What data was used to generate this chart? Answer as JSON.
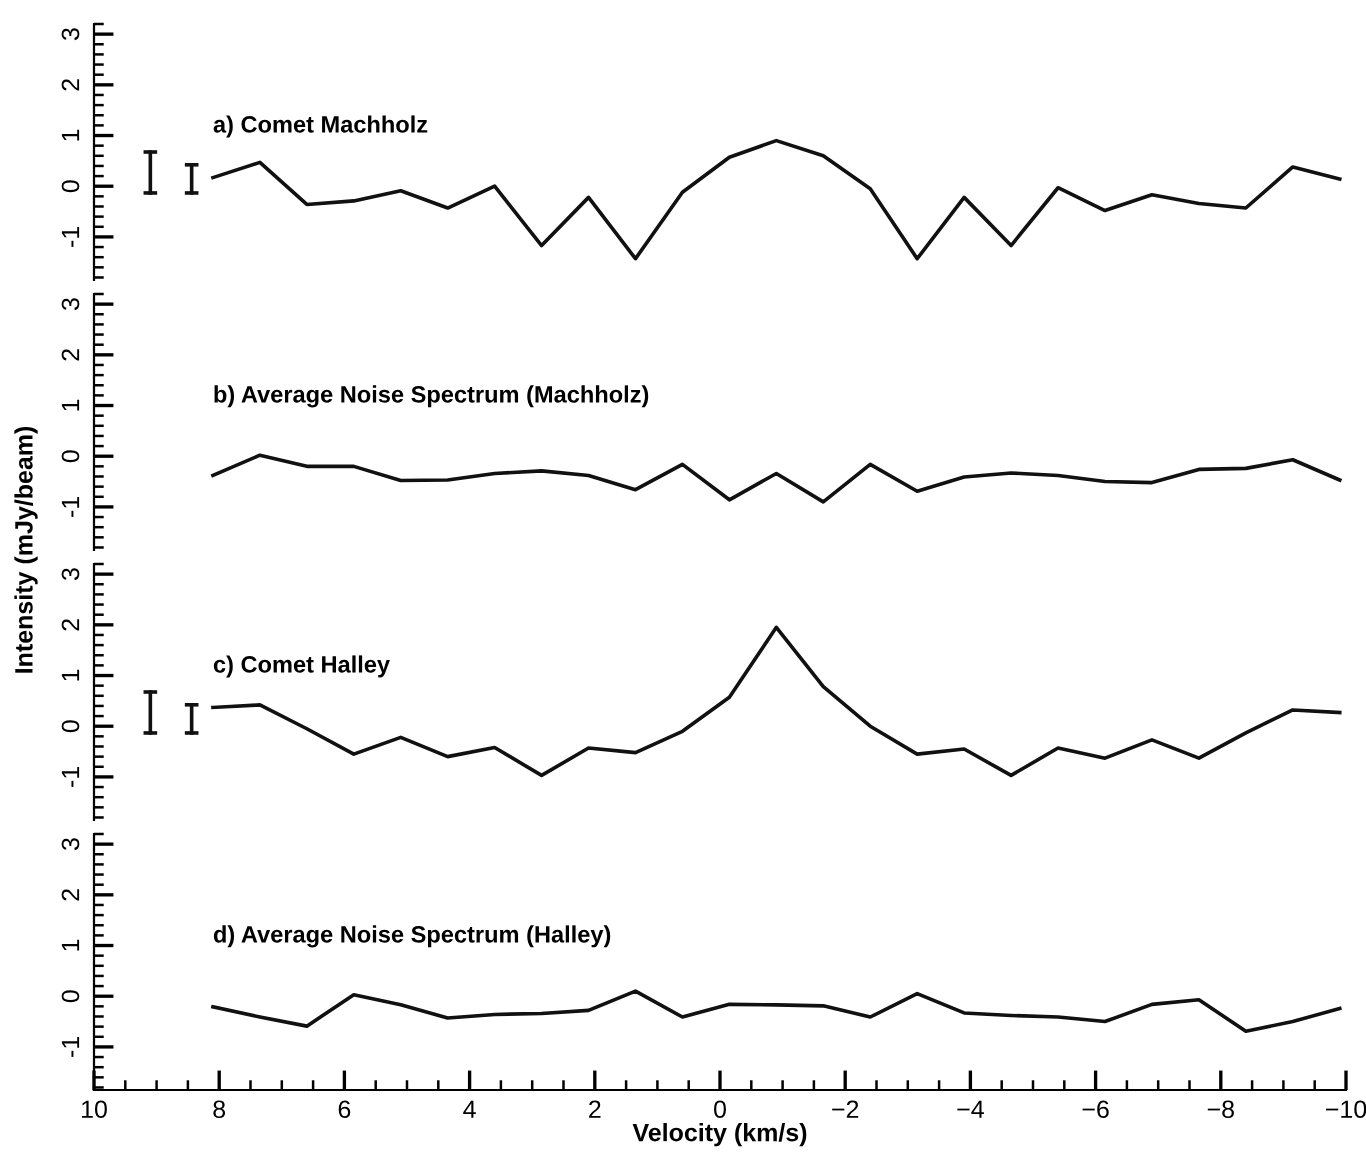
{
  "chart_data": [
    {
      "type": "line",
      "title": "a) Comet Machholz",
      "x": [
        8.1,
        7.35,
        6.6,
        5.85,
        5.1,
        4.35,
        3.6,
        2.85,
        2.1,
        1.35,
        0.6,
        -0.15,
        -0.9,
        -1.65,
        -2.4,
        -3.15,
        -3.9,
        -4.65,
        -5.4,
        -6.15,
        -6.9,
        -7.65,
        -8.4,
        -9.15,
        -9.9
      ],
      "series": [
        {
          "color": "#111111",
          "values": [
            0.17,
            0.47,
            -0.36,
            -0.29,
            -0.09,
            -0.43,
            0.0,
            -1.17,
            -0.22,
            -1.43,
            -0.12,
            0.57,
            0.9,
            0.6,
            -0.05,
            -1.43,
            -0.22,
            -1.17,
            -0.03,
            -0.48,
            -0.17,
            -0.34,
            -0.43,
            0.38,
            0.14
          ]
        }
      ],
      "xlim": [
        10,
        -10
      ],
      "ylim": [
        -1.85,
        3.2
      ],
      "yticks": [
        -1,
        0,
        1,
        2,
        3
      ],
      "tick_labels": "y",
      "line_style": "solid",
      "marker": "none",
      "grid": false
    },
    {
      "type": "line",
      "title": "b) Average Noise Spectrum (Machholz)",
      "ylabel": "Intensity (mJy/beam)",
      "x": [
        8.1,
        7.35,
        6.6,
        5.85,
        5.1,
        4.35,
        3.6,
        2.85,
        2.1,
        1.35,
        0.6,
        -0.15,
        -0.9,
        -1.65,
        -2.4,
        -3.15,
        -3.9,
        -4.65,
        -5.4,
        -6.15,
        -6.9,
        -7.65,
        -8.4,
        -9.15,
        -9.9
      ],
      "series": [
        {
          "color": "#111111",
          "values": [
            -0.38,
            0.02,
            -0.2,
            -0.2,
            -0.48,
            -0.47,
            -0.34,
            -0.29,
            -0.38,
            -0.66,
            -0.16,
            -0.86,
            -0.34,
            -0.9,
            -0.16,
            -0.69,
            -0.41,
            -0.33,
            -0.38,
            -0.5,
            -0.52,
            -0.26,
            -0.24,
            -0.07,
            -0.47
          ]
        }
      ],
      "xlim": [
        10,
        -10
      ],
      "ylim": [
        -1.85,
        3.2
      ],
      "yticks": [
        -1,
        0,
        1,
        2,
        3
      ],
      "tick_labels": "y",
      "line_style": "solid",
      "marker": "none",
      "grid": false
    },
    {
      "type": "line",
      "title": "c) Comet Halley",
      "x": [
        8.1,
        7.35,
        6.6,
        5.85,
        5.1,
        4.35,
        3.6,
        2.85,
        2.1,
        1.35,
        0.6,
        -0.15,
        -0.9,
        -1.65,
        -2.4,
        -3.15,
        -3.9,
        -4.65,
        -5.4,
        -6.15,
        -6.9,
        -7.65,
        -8.4,
        -9.15,
        -9.9
      ],
      "series": [
        {
          "color": "#111111",
          "values": [
            0.37,
            0.42,
            -0.05,
            -0.55,
            -0.22,
            -0.6,
            -0.42,
            -0.97,
            -0.43,
            -0.52,
            -0.1,
            0.57,
            1.95,
            0.78,
            0.0,
            -0.55,
            -0.45,
            -0.97,
            -0.43,
            -0.63,
            -0.27,
            -0.63,
            -0.13,
            0.32,
            0.27
          ]
        }
      ],
      "xlim": [
        10,
        -10
      ],
      "ylim": [
        -1.85,
        3.2
      ],
      "yticks": [
        -1,
        0,
        1,
        2,
        3
      ],
      "tick_labels": "y",
      "line_style": "solid",
      "marker": "none",
      "grid": false
    },
    {
      "type": "line",
      "title": "d) Average Noise Spectrum (Halley)",
      "xlabel": "Velocity (km/s)",
      "x": [
        8.1,
        7.35,
        6.6,
        5.85,
        5.1,
        4.35,
        3.6,
        2.85,
        2.1,
        1.35,
        0.6,
        -0.15,
        -0.9,
        -1.65,
        -2.4,
        -3.15,
        -3.9,
        -4.65,
        -5.4,
        -6.15,
        -6.9,
        -7.65,
        -8.4,
        -9.15,
        -9.9
      ],
      "series": [
        {
          "color": "#111111",
          "values": [
            -0.21,
            -0.41,
            -0.59,
            0.03,
            -0.17,
            -0.43,
            -0.36,
            -0.34,
            -0.28,
            0.1,
            -0.41,
            -0.16,
            -0.17,
            -0.19,
            -0.41,
            0.05,
            -0.33,
            -0.38,
            -0.41,
            -0.5,
            -0.16,
            -0.07,
            -0.69,
            -0.5,
            -0.24
          ]
        }
      ],
      "xlim": [
        10,
        -10
      ],
      "xticks": [
        10,
        8,
        6,
        4,
        2,
        0,
        {
          "value": -2,
          "label": "−2"
        },
        {
          "value": -4,
          "label": "−4"
        },
        {
          "value": -6,
          "label": "−6"
        },
        {
          "value": -8,
          "label": "−8"
        },
        {
          "value": -10,
          "label": "−10"
        }
      ],
      "ylim": [
        -1.85,
        3.2
      ],
      "yticks": [
        -1,
        0,
        1,
        2,
        3
      ],
      "line_style": "solid",
      "marker": "none",
      "grid": false
    }
  ]
}
